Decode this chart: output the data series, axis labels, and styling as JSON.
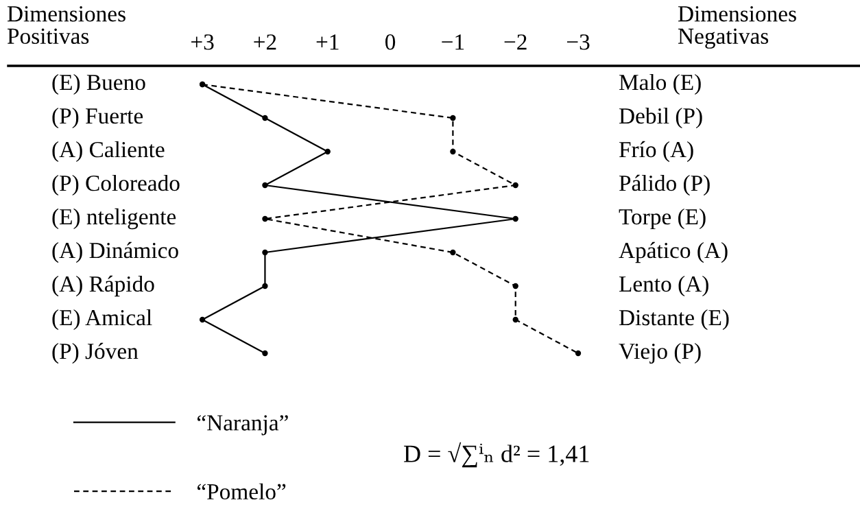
{
  "chart_data": {
    "type": "line",
    "orientation": "horizontal",
    "marker": "circle",
    "legend": "bottom left",
    "ylabel": "Dimensiones\nPositivas",
    "y2label": "Dimensiones\nNegativas",
    "categories": [
      "(E) Bueno",
      "(P) Fuerte",
      "(A) Caliente",
      "(P) Coloreado",
      "(E) nteligente",
      "(A) Dinámico",
      "(A) Rápido",
      "(E) Amical",
      "(P) Jóven"
    ],
    "y2_categories": [
      "Malo (E)",
      "Debil (P)",
      "Frío (A)",
      "Pálido (P)",
      "Torpe (E)",
      "Apático (A)",
      "Lento (A)",
      "Distante (E)",
      "Viejo (P)"
    ],
    "xlim": [
      6.1,
      -7.5
    ],
    "xticks": [
      {
        "value": 3,
        "label": "+3"
      },
      {
        "value": 2,
        "label": "+2"
      },
      {
        "value": 1,
        "label": "+1"
      },
      0,
      {
        "value": -1,
        "label": "−1"
      },
      {
        "value": -2,
        "label": "−2"
      },
      {
        "value": -3,
        "label": "−3"
      }
    ],
    "series": [
      {
        "name": "“Naranja”",
        "color": "#000000",
        "line_style": "solid",
        "values": [
          3,
          2,
          1,
          2,
          -2,
          2,
          2,
          3,
          2
        ]
      },
      {
        "name": "“Pomelo”",
        "color": "#000000",
        "line_style": "dashed",
        "values": [
          3,
          -1,
          -1,
          -2,
          2,
          -1,
          -2,
          -2,
          -3
        ]
      }
    ],
    "annotations": [
      "D = √∑ⁱₙ d² = 1,41"
    ]
  }
}
